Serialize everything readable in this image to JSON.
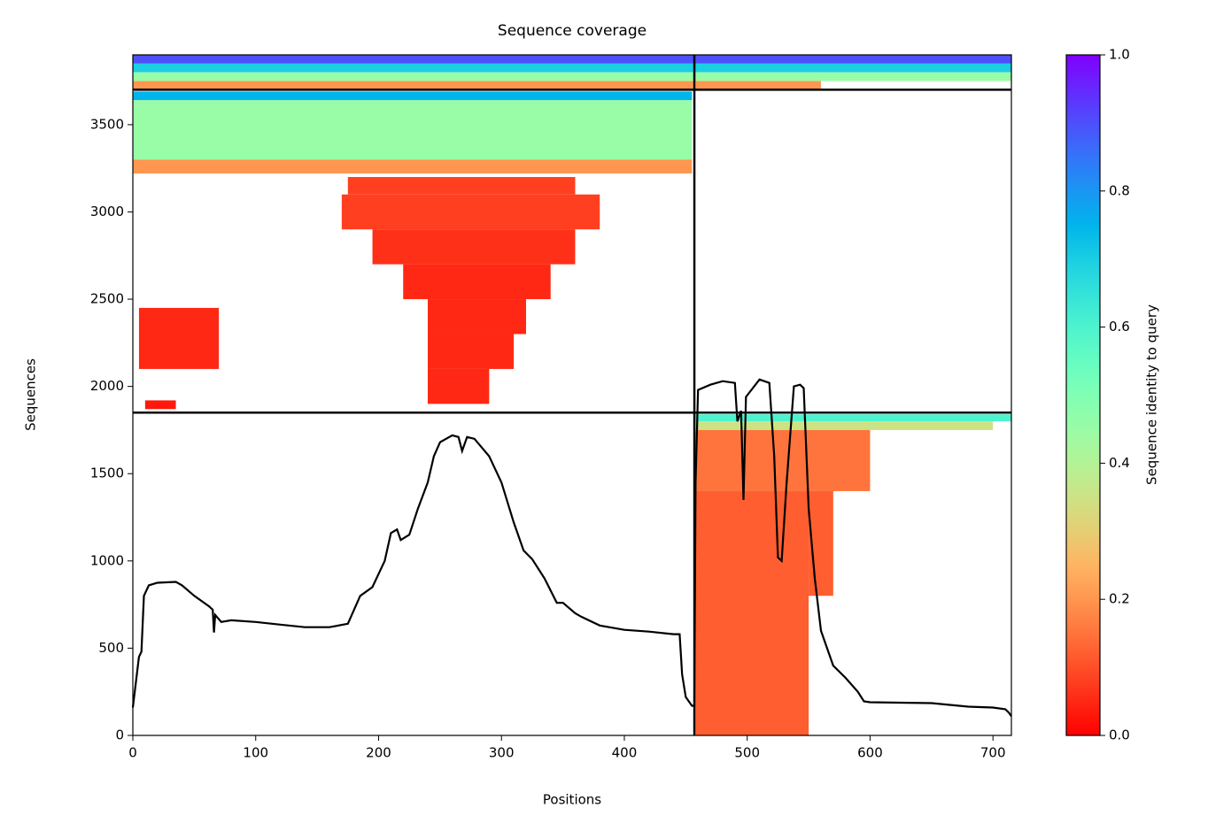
{
  "chart_data": {
    "type": "coverage",
    "title": "Sequence coverage",
    "x_label": "Positions",
    "y_label": "Sequences",
    "colorbar_label": "Sequence identity to query",
    "colormap": "rainbow_r",
    "xlim": [
      0,
      715
    ],
    "ylim": [
      0,
      3900
    ],
    "xticks": [
      0,
      100,
      200,
      300,
      400,
      500,
      600,
      700
    ],
    "yticks": [
      0,
      500,
      1000,
      1500,
      2000,
      2500,
      3000,
      3500
    ],
    "clim": [
      0,
      1
    ],
    "cticks": [
      {
        "value": 0,
        "label": "0.0"
      },
      0.2,
      0.4,
      0.6,
      0.8,
      {
        "value": 1,
        "label": "1.0"
      }
    ],
    "boundaries": {
      "x": [
        457
      ],
      "y": [
        1850,
        3700
      ]
    },
    "blocks": [
      {
        "x": [
          0,
          715
        ],
        "y": [
          3850,
          3900
        ],
        "identity": 0.9
      },
      {
        "x": [
          0,
          715
        ],
        "y": [
          3800,
          3850
        ],
        "identity": 0.7
      },
      {
        "x": [
          0,
          715
        ],
        "y": [
          3750,
          3800
        ],
        "identity": 0.45
      },
      {
        "x": [
          0,
          457
        ],
        "y": [
          3700,
          3750
        ],
        "identity": 0.2
      },
      {
        "x": [
          458,
          560
        ],
        "y": [
          3700,
          3750
        ],
        "identity": 0.2
      },
      {
        "x": [
          0,
          455
        ],
        "y": [
          3640,
          3690
        ],
        "identity": 0.75
      },
      {
        "x": [
          0,
          455
        ],
        "y": [
          3300,
          3640
        ],
        "identity": 0.45
      },
      {
        "x": [
          0,
          455
        ],
        "y": [
          3220,
          3300
        ],
        "identity": 0.2
      },
      {
        "x": [
          175,
          360
        ],
        "y": [
          3100,
          3200
        ],
        "identity": 0.08
      },
      {
        "x": [
          170,
          380
        ],
        "y": [
          2900,
          3100
        ],
        "identity": 0.08
      },
      {
        "x": [
          195,
          360
        ],
        "y": [
          2700,
          2900
        ],
        "identity": 0.06
      },
      {
        "x": [
          220,
          340
        ],
        "y": [
          2500,
          2700
        ],
        "identity": 0.05
      },
      {
        "x": [
          240,
          320
        ],
        "y": [
          2300,
          2500
        ],
        "identity": 0.05
      },
      {
        "x": [
          240,
          310
        ],
        "y": [
          2100,
          2300
        ],
        "identity": 0.05
      },
      {
        "x": [
          240,
          290
        ],
        "y": [
          1900,
          2100
        ],
        "identity": 0.05
      },
      {
        "x": [
          5,
          70
        ],
        "y": [
          2100,
          2450
        ],
        "identity": 0.05
      },
      {
        "x": [
          10,
          35
        ],
        "y": [
          1870,
          1920
        ],
        "identity": 0.03
      },
      {
        "x": [
          458,
          715
        ],
        "y": [
          1800,
          1840
        ],
        "identity": 0.6
      },
      {
        "x": [
          458,
          700
        ],
        "y": [
          1750,
          1800
        ],
        "identity": 0.35
      },
      {
        "x": [
          458,
          600
        ],
        "y": [
          1400,
          1750
        ],
        "identity": 0.15
      },
      {
        "x": [
          458,
          550
        ],
        "y": [
          0,
          1400
        ],
        "identity": 0.12
      },
      {
        "x": [
          550,
          570
        ],
        "y": [
          800,
          1400
        ],
        "identity": 0.12
      }
    ],
    "coverage": {
      "x": [
        0,
        5,
        7,
        9,
        13,
        20,
        35,
        40,
        50,
        62,
        65,
        66,
        67,
        72,
        80,
        100,
        120,
        140,
        160,
        175,
        185,
        195,
        205,
        210,
        215,
        218,
        225,
        232,
        240,
        245,
        250,
        260,
        265,
        268,
        272,
        278,
        290,
        300,
        310,
        318,
        325,
        335,
        345,
        350,
        360,
        365,
        380,
        400,
        420,
        440,
        445,
        447,
        450,
        455,
        457,
        458,
        460,
        470,
        480,
        490,
        492,
        495,
        497,
        499,
        510,
        518,
        522,
        525,
        528,
        532,
        538,
        543,
        546,
        550,
        555,
        560,
        570,
        580,
        590,
        595,
        600,
        650,
        680,
        700,
        710,
        713,
        715
      ],
      "y": [
        160,
        450,
        480,
        800,
        860,
        875,
        880,
        860,
        800,
        740,
        720,
        590,
        690,
        650,
        660,
        650,
        635,
        620,
        620,
        640,
        800,
        850,
        1000,
        1160,
        1180,
        1120,
        1150,
        1300,
        1450,
        1600,
        1680,
        1720,
        1710,
        1630,
        1710,
        1700,
        1600,
        1450,
        1220,
        1060,
        1010,
        900,
        760,
        760,
        700,
        680,
        630,
        605,
        595,
        580,
        580,
        350,
        220,
        170,
        170,
        1450,
        1980,
        2010,
        2030,
        2020,
        1800,
        1860,
        1350,
        1940,
        2040,
        2020,
        1600,
        1020,
        1000,
        1440,
        2000,
        2010,
        1990,
        1300,
        900,
        600,
        400,
        330,
        250,
        195,
        190,
        185,
        165,
        160,
        150,
        130,
        110
      ]
    }
  }
}
